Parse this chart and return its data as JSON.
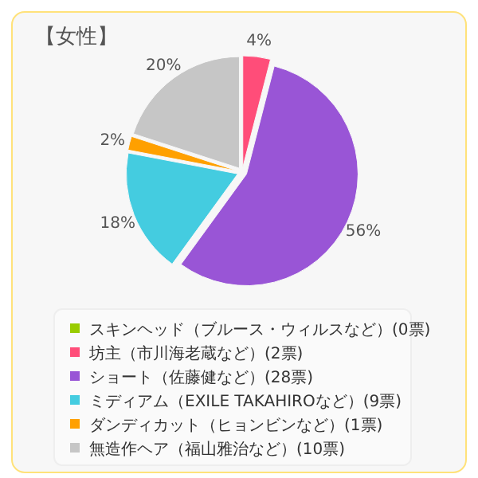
{
  "chart_data": {
    "type": "pie",
    "title": "【女性】",
    "categories": [
      "スキンヘッド（ブルース・ウィルスなど）(0票)",
      "坊主（市川海老蔵など）(2票)",
      "ショート（佐藤健など）(28票)",
      "ミディアム（EXILE TAKAHIROなど）(9票)",
      "ダンディカット（ヒョンビンなど）(1票)",
      "無造作ヘア（福山雅治など）(10票)"
    ],
    "values": [
      0,
      4,
      56,
      18,
      2,
      20
    ],
    "colors": [
      "#99cc00",
      "#ff4d79",
      "#9955d6",
      "#44cce0",
      "#ffa000",
      "#c6c6c6"
    ],
    "value_labels": [
      null,
      "4%",
      "56%",
      "18%",
      "2%",
      "20%"
    ],
    "legend": "bottom"
  }
}
